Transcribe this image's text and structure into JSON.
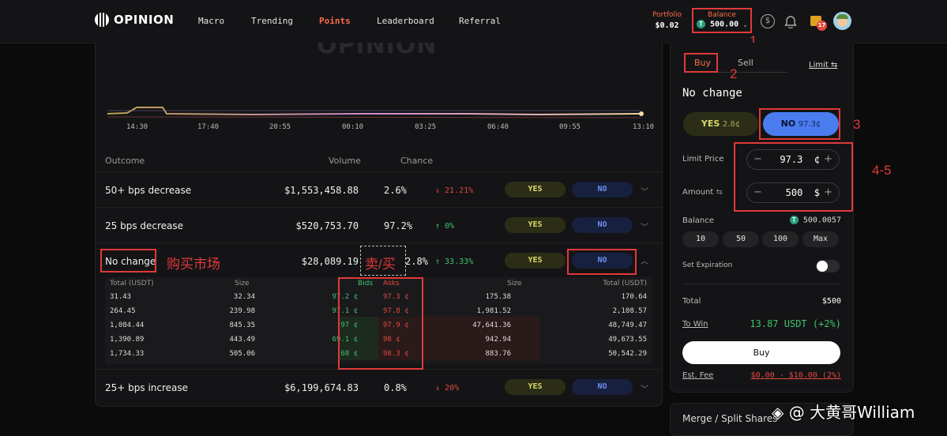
{
  "nav": {
    "brand": "OPINION",
    "items": [
      {
        "label": "Macro",
        "active": false
      },
      {
        "label": "Trending",
        "active": false
      },
      {
        "label": "Points",
        "active": true
      },
      {
        "label": "Leaderboard",
        "active": false
      },
      {
        "label": "Referral",
        "active": false
      }
    ],
    "portfolio_label": "Portfolio",
    "portfolio_value": "$0.02",
    "balance_label": "Balance",
    "balance_value": "500.00",
    "notif_badge": "17"
  },
  "annotations": {
    "a1": "1",
    "a2": "2",
    "a3": "3",
    "a45": "4-5",
    "buy_market": "购买市场",
    "sell_buy": "卖/买",
    "watermark": "◈ @ 大黄哥William"
  },
  "chart": {
    "watermark": "OPINION",
    "times": [
      "14:30",
      "17:40",
      "20:55",
      "00:10",
      "03:25",
      "06:40",
      "09:55",
      "13:10"
    ]
  },
  "table": {
    "headers": {
      "outcome": "Outcome",
      "volume": "Volume",
      "chance": "Chance"
    },
    "rows": [
      {
        "name": "50+ bps decrease",
        "volume": "$1,553,458.88",
        "chance": "2.6%",
        "delta": "↓ 21.21%",
        "dir": "down",
        "yes": "YES",
        "no": "NO"
      },
      {
        "name": "25 bps decrease",
        "volume": "$520,753.70",
        "chance": "97.2%",
        "delta": "↑ 0%",
        "dir": "up",
        "yes": "YES",
        "no": "NO"
      },
      {
        "name": "No change",
        "volume": "$28,089.19",
        "chance": "2.8%",
        "delta": "↑ 33.33%",
        "dir": "up",
        "yes": "YES",
        "no": "NO"
      },
      {
        "name": "25+ bps increase",
        "volume": "$6,199,674.83",
        "chance": "0.8%",
        "delta": "↓ 20%",
        "dir": "down",
        "yes": "YES",
        "no": "NO"
      }
    ]
  },
  "book": {
    "headers": {
      "total_l": "Total (USDT)",
      "size_l": "Size",
      "bids": "Bids",
      "asks": "Asks",
      "size_r": "Size",
      "total_r": "Total (USDT)"
    },
    "rows": [
      {
        "total_l": "31.43",
        "size_l": "32.34",
        "bid": "97.2 ¢",
        "ask": "97.3 ¢",
        "size_r": "175.38",
        "total_r": "170.64"
      },
      {
        "total_l": "264.45",
        "size_l": "239.98",
        "bid": "97.1 ¢",
        "ask": "97.8 ¢",
        "size_r": "1,981.52",
        "total_r": "2,108.57"
      },
      {
        "total_l": "1,084.44",
        "size_l": "845.35",
        "bid": "97 ¢",
        "ask": "97.9 ¢",
        "size_r": "47,641.36",
        "total_r": "48,749.47"
      },
      {
        "total_l": "1,390.89",
        "size_l": "443.49",
        "bid": "69.1 ¢",
        "ask": "98 ¢",
        "size_r": "942.94",
        "total_r": "49,673.55"
      },
      {
        "total_l": "1,734.33",
        "size_l": "505.06",
        "bid": "68 ¢",
        "ask": "98.3 ¢",
        "size_r": "883.76",
        "total_r": "50,542.29"
      }
    ]
  },
  "trade": {
    "tab_buy": "Buy",
    "tab_sell": "Sell",
    "mode": "Limit",
    "market_title": "No change",
    "yes_label": "YES",
    "yes_price": "2.8¢",
    "no_label": "NO",
    "no_price": "97.3¢",
    "limit_label": "Limit Price",
    "limit_value": "97.3",
    "limit_unit": "¢",
    "amount_label": "Amount",
    "amount_value": "500",
    "amount_unit": "$",
    "balance_label": "Balance",
    "balance_value": "500.0057",
    "chips": [
      "10",
      "50",
      "100",
      "Max"
    ],
    "expiration_label": "Set Expiration",
    "total_label": "Total",
    "total_value": "$500",
    "towin_label": "To Win",
    "towin_value": "13.87 USDT (+2%)",
    "buy_button": "Buy",
    "fee_label": "Est. Fee",
    "fee_value": "$0.00 - $10.00 (2%)"
  },
  "merge": {
    "label": "Merge / Split Shares"
  },
  "colors": {
    "accent": "#ff6b4a",
    "green": "#3ec46d",
    "red": "#e2483d",
    "no_blue": "#4a7cf0"
  }
}
